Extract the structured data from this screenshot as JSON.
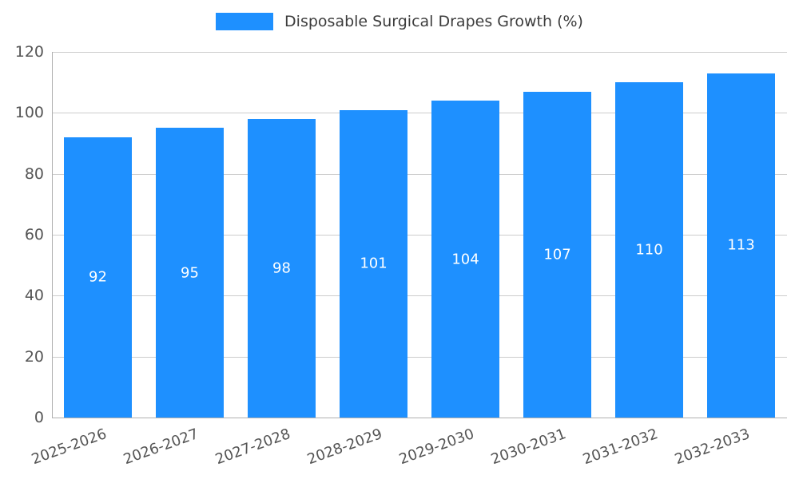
{
  "colors": {
    "bar": "#1E90FF",
    "grid": "#cccccc",
    "axis": "#b0b0b0",
    "tick_text": "#555555",
    "value_label": "#ffffff",
    "legend_text": "#3c3c3c"
  },
  "chart_data": {
    "type": "bar",
    "title": "Disposable Surgical Drapes Growth (%)",
    "categories": [
      "2025-2026",
      "2026-2027",
      "2027-2028",
      "2028-2029",
      "2029-2030",
      "2030-2031",
      "2031-2032",
      "2032-2033"
    ],
    "values": [
      92,
      95,
      98,
      101,
      104,
      107,
      110,
      113
    ],
    "xlabel": "",
    "ylabel": "",
    "ylim": [
      0,
      120
    ],
    "yticks": [
      0,
      20,
      40,
      60,
      80,
      100,
      120
    ],
    "grid": true,
    "legend_position": "top-center",
    "value_labels": "inside-center",
    "x_tick_rotation": -20
  }
}
